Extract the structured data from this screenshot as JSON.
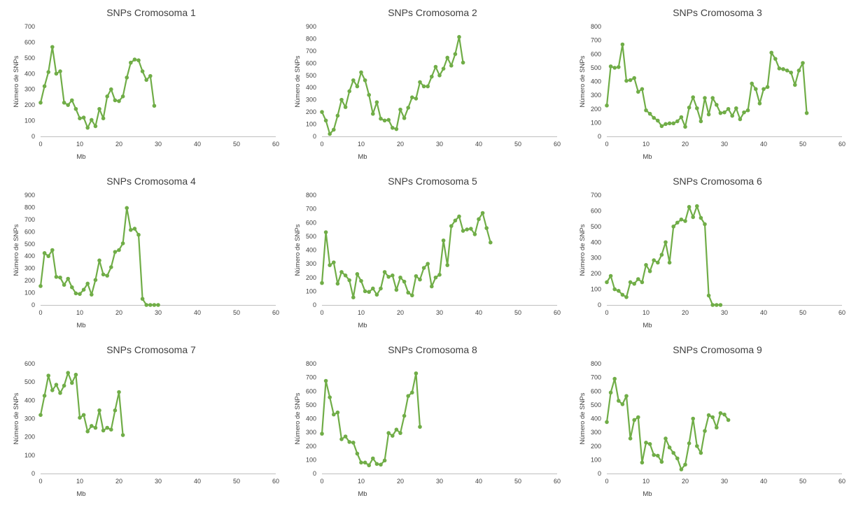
{
  "colors": {
    "series": "#70ad47",
    "axis": "#bfbfbf",
    "text": "#404040"
  },
  "chart_data": [
    {
      "type": "line",
      "title": "SNPs Cromosoma 1",
      "xlabel": "Mb",
      "ylabel": "Número de SNPs",
      "xlim": [
        0,
        60
      ],
      "ylim": [
        0,
        700
      ],
      "xticks": [
        0,
        10,
        20,
        30,
        40,
        50,
        60
      ],
      "yticks": [
        0,
        100,
        200,
        300,
        400,
        500,
        600,
        700
      ],
      "grid": false,
      "legend": "none",
      "x": [
        0,
        1,
        2,
        3,
        4,
        5,
        6,
        7,
        8,
        9,
        10,
        11,
        12,
        13,
        14,
        15,
        16,
        17,
        18,
        19,
        20,
        21,
        22,
        23,
        24,
        25,
        26,
        27,
        28,
        29
      ],
      "y": [
        215,
        320,
        410,
        570,
        400,
        415,
        215,
        200,
        230,
        175,
        115,
        120,
        55,
        105,
        65,
        175,
        115,
        255,
        300,
        230,
        225,
        255,
        375,
        470,
        490,
        485,
        415,
        360,
        385,
        195
      ]
    },
    {
      "type": "line",
      "title": "SNPs Cromosoma 2",
      "xlabel": "Mb",
      "ylabel": "Número de SNPs",
      "xlim": [
        0,
        60
      ],
      "ylim": [
        0,
        900
      ],
      "xticks": [
        0,
        10,
        20,
        30,
        40,
        50,
        60
      ],
      "yticks": [
        0,
        100,
        200,
        300,
        400,
        500,
        600,
        700,
        800,
        900
      ],
      "grid": false,
      "legend": "none",
      "x": [
        0,
        1,
        2,
        3,
        4,
        5,
        6,
        7,
        8,
        9,
        10,
        11,
        12,
        13,
        14,
        15,
        16,
        17,
        18,
        19,
        20,
        21,
        22,
        23,
        24,
        25,
        26,
        27,
        28,
        29,
        30,
        31,
        32,
        33,
        34,
        35,
        36
      ],
      "y": [
        200,
        130,
        20,
        55,
        170,
        300,
        240,
        370,
        460,
        410,
        525,
        460,
        340,
        185,
        280,
        145,
        130,
        135,
        70,
        60,
        220,
        150,
        235,
        320,
        310,
        445,
        410,
        410,
        490,
        570,
        500,
        555,
        645,
        580,
        675,
        815,
        605
      ]
    },
    {
      "type": "line",
      "title": "SNPs Cromosoma 3",
      "xlabel": "Mb",
      "ylabel": "Número de SNPs",
      "xlim": [
        0,
        60
      ],
      "ylim": [
        0,
        800
      ],
      "xticks": [
        0,
        10,
        20,
        30,
        40,
        50,
        60
      ],
      "yticks": [
        0,
        100,
        200,
        300,
        400,
        500,
        600,
        700,
        800
      ],
      "grid": false,
      "legend": "none",
      "x": [
        0,
        1,
        2,
        3,
        4,
        5,
        6,
        7,
        8,
        9,
        10,
        11,
        12,
        13,
        14,
        15,
        16,
        17,
        18,
        19,
        20,
        21,
        22,
        23,
        24,
        25,
        26,
        27,
        28,
        29,
        30,
        31,
        32,
        33,
        34,
        35,
        36,
        37,
        38,
        39,
        40,
        41,
        42,
        43,
        44,
        45,
        46,
        47,
        48,
        49,
        50,
        51
      ],
      "y": [
        225,
        510,
        500,
        505,
        670,
        405,
        410,
        425,
        325,
        345,
        190,
        165,
        135,
        115,
        75,
        90,
        95,
        95,
        110,
        140,
        70,
        210,
        285,
        205,
        110,
        280,
        160,
        280,
        230,
        170,
        175,
        200,
        150,
        205,
        125,
        175,
        190,
        385,
        345,
        240,
        345,
        360,
        610,
        565,
        495,
        490,
        480,
        465,
        375,
        480,
        535,
        170
      ]
    },
    {
      "type": "line",
      "title": "SNPs Cromosoma 4",
      "xlabel": "Mb",
      "ylabel": "Número de SNPs",
      "xlim": [
        0,
        60
      ],
      "ylim": [
        0,
        900
      ],
      "xticks": [
        0,
        10,
        20,
        30,
        40,
        50,
        60
      ],
      "yticks": [
        0,
        100,
        200,
        300,
        400,
        500,
        600,
        700,
        800,
        900
      ],
      "grid": false,
      "legend": "none",
      "x": [
        0,
        1,
        2,
        3,
        4,
        5,
        6,
        7,
        8,
        9,
        10,
        11,
        12,
        13,
        14,
        15,
        16,
        17,
        18,
        19,
        20,
        21,
        22,
        23,
        24,
        25,
        26,
        27,
        28,
        29,
        30
      ],
      "y": [
        155,
        425,
        400,
        450,
        230,
        225,
        165,
        215,
        145,
        95,
        90,
        125,
        175,
        85,
        205,
        365,
        250,
        240,
        310,
        435,
        450,
        505,
        795,
        615,
        625,
        575,
        50,
        0,
        0,
        0,
        0
      ]
    },
    {
      "type": "line",
      "title": "SNPs Cromosoma 5",
      "xlabel": "Mb",
      "ylabel": "Número de SNPs",
      "xlim": [
        0,
        60
      ],
      "ylim": [
        0,
        800
      ],
      "xticks": [
        0,
        10,
        20,
        30,
        40,
        50,
        60
      ],
      "yticks": [
        0,
        100,
        200,
        300,
        400,
        500,
        600,
        700,
        800
      ],
      "grid": false,
      "legend": "none",
      "x": [
        0,
        1,
        2,
        3,
        4,
        5,
        6,
        7,
        8,
        9,
        10,
        11,
        12,
        13,
        14,
        15,
        16,
        17,
        18,
        19,
        20,
        21,
        22,
        23,
        24,
        25,
        26,
        27,
        28,
        29,
        30,
        31,
        32,
        33,
        34,
        35,
        36,
        37,
        38,
        39,
        40,
        41,
        42,
        43
      ],
      "y": [
        160,
        530,
        290,
        310,
        155,
        240,
        215,
        180,
        55,
        225,
        175,
        100,
        95,
        120,
        75,
        120,
        240,
        205,
        215,
        110,
        200,
        170,
        90,
        70,
        210,
        185,
        270,
        300,
        135,
        200,
        220,
        470,
        290,
        575,
        615,
        645,
        540,
        550,
        555,
        515,
        625,
        670,
        560,
        455
      ]
    },
    {
      "type": "line",
      "title": "SNPs Cromosoma 6",
      "xlabel": "Mb",
      "ylabel": "Número de SNPs",
      "xlim": [
        0,
        60
      ],
      "ylim": [
        0,
        700
      ],
      "xticks": [
        0,
        10,
        20,
        30,
        40,
        50,
        60
      ],
      "yticks": [
        0,
        100,
        200,
        300,
        400,
        500,
        600,
        700
      ],
      "grid": false,
      "legend": "none",
      "x": [
        0,
        1,
        2,
        3,
        4,
        5,
        6,
        7,
        8,
        9,
        10,
        11,
        12,
        13,
        14,
        15,
        16,
        17,
        18,
        19,
        20,
        21,
        22,
        23,
        24,
        25,
        26,
        27,
        28,
        29
      ],
      "y": [
        145,
        185,
        100,
        90,
        65,
        50,
        145,
        135,
        165,
        145,
        255,
        215,
        285,
        270,
        320,
        400,
        270,
        500,
        525,
        545,
        535,
        625,
        560,
        630,
        555,
        515,
        60,
        0,
        0,
        0
      ]
    },
    {
      "type": "line",
      "title": "SNPs Cromosoma 7",
      "xlabel": "Mb",
      "ylabel": "Número de SNPs",
      "xlim": [
        0,
        60
      ],
      "ylim": [
        0,
        600
      ],
      "xticks": [
        0,
        10,
        20,
        30,
        40,
        50,
        60
      ],
      "yticks": [
        0,
        100,
        200,
        300,
        400,
        500,
        600
      ],
      "grid": false,
      "legend": "none",
      "x": [
        0,
        1,
        2,
        3,
        4,
        5,
        6,
        7,
        8,
        9,
        10,
        11,
        12,
        13,
        14,
        15,
        16,
        17,
        18,
        19,
        20,
        21
      ],
      "y": [
        320,
        425,
        535,
        455,
        485,
        440,
        480,
        550,
        495,
        540,
        305,
        320,
        230,
        260,
        250,
        345,
        235,
        250,
        240,
        345,
        445,
        210
      ]
    },
    {
      "type": "line",
      "title": "SNPs Cromosoma 8",
      "xlabel": "Mb",
      "ylabel": "Número de SNPs",
      "xlim": [
        0,
        60
      ],
      "ylim": [
        0,
        800
      ],
      "xticks": [
        0,
        10,
        20,
        30,
        40,
        50,
        60
      ],
      "yticks": [
        0,
        100,
        200,
        300,
        400,
        500,
        600,
        700,
        800
      ],
      "grid": false,
      "legend": "none",
      "x": [
        0,
        1,
        2,
        3,
        4,
        5,
        6,
        7,
        8,
        9,
        10,
        11,
        12,
        13,
        14,
        15,
        16,
        17,
        18,
        19,
        20,
        21,
        22,
        23,
        24,
        25
      ],
      "y": [
        290,
        675,
        555,
        430,
        445,
        250,
        270,
        230,
        225,
        145,
        80,
        80,
        60,
        110,
        70,
        65,
        95,
        295,
        275,
        320,
        295,
        420,
        565,
        590,
        730,
        340
      ]
    },
    {
      "type": "line",
      "title": "SNPs Cromosoma 9",
      "xlabel": "Mb",
      "ylabel": "Número de SNPs",
      "xlim": [
        0,
        60
      ],
      "ylim": [
        0,
        800
      ],
      "xticks": [
        0,
        10,
        20,
        30,
        40,
        50,
        60
      ],
      "yticks": [
        0,
        100,
        200,
        300,
        400,
        500,
        600,
        700,
        800
      ],
      "grid": false,
      "legend": "none",
      "x": [
        0,
        1,
        2,
        3,
        4,
        5,
        6,
        7,
        8,
        9,
        10,
        11,
        12,
        13,
        14,
        15,
        16,
        17,
        18,
        19,
        20,
        21,
        22,
        23,
        24,
        25,
        26,
        27,
        28,
        29,
        30,
        31
      ],
      "y": [
        375,
        590,
        690,
        530,
        505,
        565,
        255,
        390,
        410,
        80,
        225,
        215,
        135,
        130,
        85,
        255,
        190,
        150,
        110,
        30,
        65,
        220,
        400,
        200,
        150,
        310,
        425,
        410,
        335,
        440,
        430,
        390
      ]
    }
  ]
}
